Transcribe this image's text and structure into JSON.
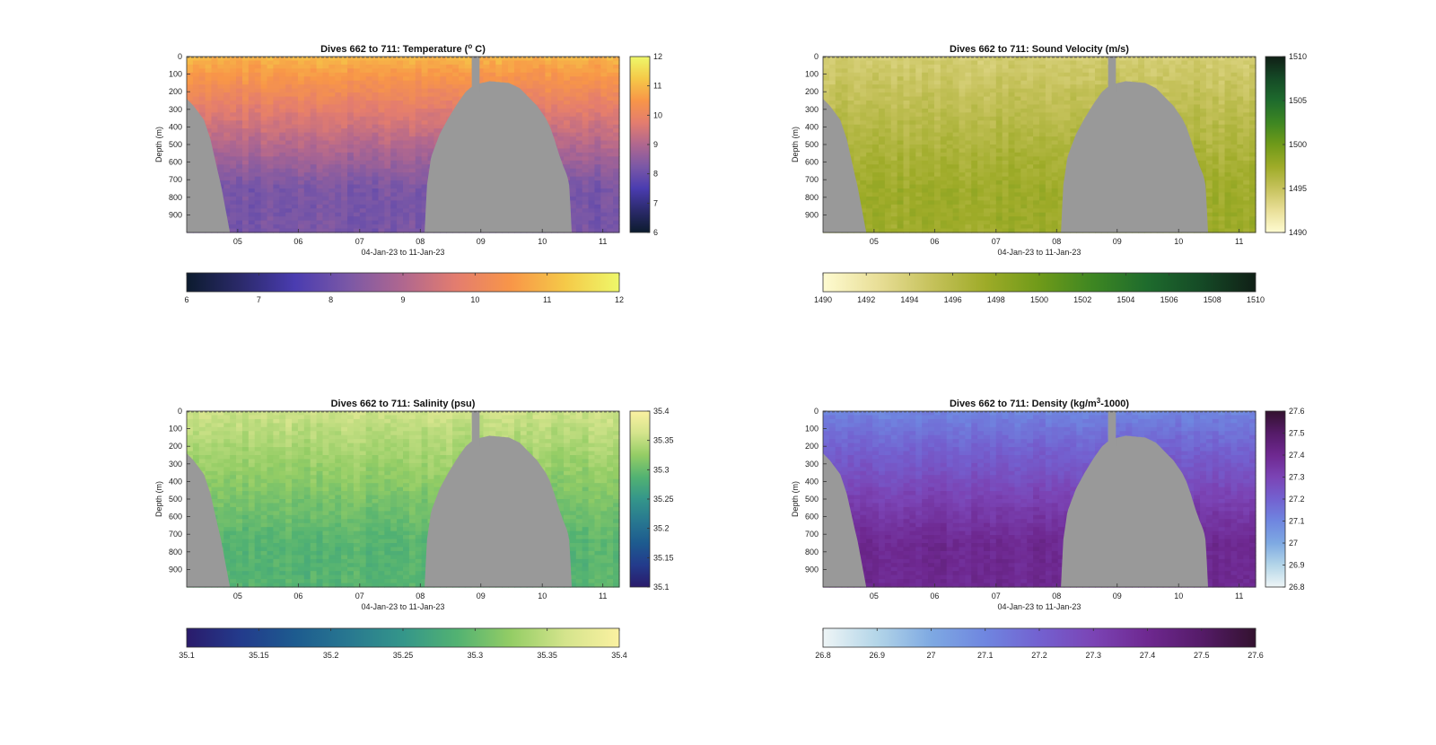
{
  "figure": {
    "x_label": "04-Jan-23 to 11-Jan-23",
    "y_label": "Depth (m)",
    "terrain_color": "#999999"
  },
  "chart_data": [
    {
      "type": "heatmap",
      "id": "temperature",
      "title": "Dives 662 to 711: Temperature (",
      "title_sup": "o",
      "title_suffix": " C)",
      "x_ticks": [
        "05",
        "06",
        "07",
        "08",
        "09",
        "10",
        "11"
      ],
      "y_ticks": [
        "0",
        "100",
        "200",
        "300",
        "400",
        "500",
        "600",
        "700",
        "800",
        "900"
      ],
      "ylim": [
        0,
        1000
      ],
      "color_range": [
        6,
        12
      ],
      "colorbar_ticks": [
        "6",
        "7",
        "8",
        "9",
        "10",
        "11",
        "12"
      ],
      "colormap": [
        "#0c1b2e",
        "#2b2a6b",
        "#4a3cb0",
        "#7b58a6",
        "#b0678f",
        "#e47d6e",
        "#f89648",
        "#f5c948",
        "#eef86a"
      ],
      "profile": {
        "surface": 11,
        "deep": 8.2
      }
    },
    {
      "type": "heatmap",
      "id": "sound_velocity",
      "title": "Dives 662 to 711: Sound Velocity (m/s)",
      "x_ticks": [
        "05",
        "06",
        "07",
        "08",
        "09",
        "10",
        "11"
      ],
      "y_ticks": [
        "0",
        "100",
        "200",
        "300",
        "400",
        "500",
        "600",
        "700",
        "800",
        "900"
      ],
      "ylim": [
        0,
        1000
      ],
      "color_range": [
        1490,
        1510
      ],
      "colorbar_ticks": [
        "1490",
        "1495",
        "1500",
        "1505",
        "1510"
      ],
      "horizontal_ticks": [
        "1490",
        "1492",
        "1494",
        "1496",
        "1498",
        "1500",
        "1502",
        "1504",
        "1506",
        "1508",
        "1510"
      ],
      "colormap": [
        "#fefbd1",
        "#e9df98",
        "#c6c25c",
        "#9eab28",
        "#6f9a19",
        "#3d8622",
        "#1e6b2d",
        "#154a26",
        "#101f16"
      ],
      "profile": {
        "surface": 1494,
        "deep": 1497.5
      }
    },
    {
      "type": "heatmap",
      "id": "salinity",
      "title": "Dives 662 to 711: Salinity (psu)",
      "x_ticks": [
        "05",
        "06",
        "07",
        "08",
        "09",
        "10",
        "11"
      ],
      "y_ticks": [
        "0",
        "100",
        "200",
        "300",
        "400",
        "500",
        "600",
        "700",
        "800",
        "900"
      ],
      "ylim": [
        0,
        1000
      ],
      "color_range": [
        35.1,
        35.4
      ],
      "colorbar_ticks": [
        "35.1",
        "35.15",
        "35.2",
        "35.25",
        "35.3",
        "35.35",
        "35.4"
      ],
      "colormap": [
        "#2a1b6b",
        "#233b8c",
        "#1d5b8f",
        "#287890",
        "#34968a",
        "#52b272",
        "#94cd65",
        "#d4e48c",
        "#fbf1a1"
      ],
      "profile": {
        "surface": 35.36,
        "deep": 35.29
      }
    },
    {
      "type": "heatmap",
      "id": "density",
      "title": "Dives 662 to 711: Density (kg/m",
      "title_sup": "3",
      "title_suffix": "-1000)",
      "x_ticks": [
        "05",
        "06",
        "07",
        "08",
        "09",
        "10",
        "11"
      ],
      "y_ticks": [
        "0",
        "100",
        "200",
        "300",
        "400",
        "500",
        "600",
        "700",
        "800",
        "900"
      ],
      "ylim": [
        0,
        1000
      ],
      "color_range": [
        26.8,
        27.6
      ],
      "colorbar_ticks": [
        "26.8",
        "26.9",
        "27",
        "27.1",
        "27.2",
        "27.3",
        "27.4",
        "27.5",
        "27.6"
      ],
      "colormap": [
        "#eef5f6",
        "#b3d5e8",
        "#7ea9e2",
        "#6f86e0",
        "#7361d0",
        "#7b44b5",
        "#6e2890",
        "#551b68",
        "#33122f"
      ],
      "profile": {
        "surface": 27.1,
        "deep": 27.4
      }
    }
  ]
}
